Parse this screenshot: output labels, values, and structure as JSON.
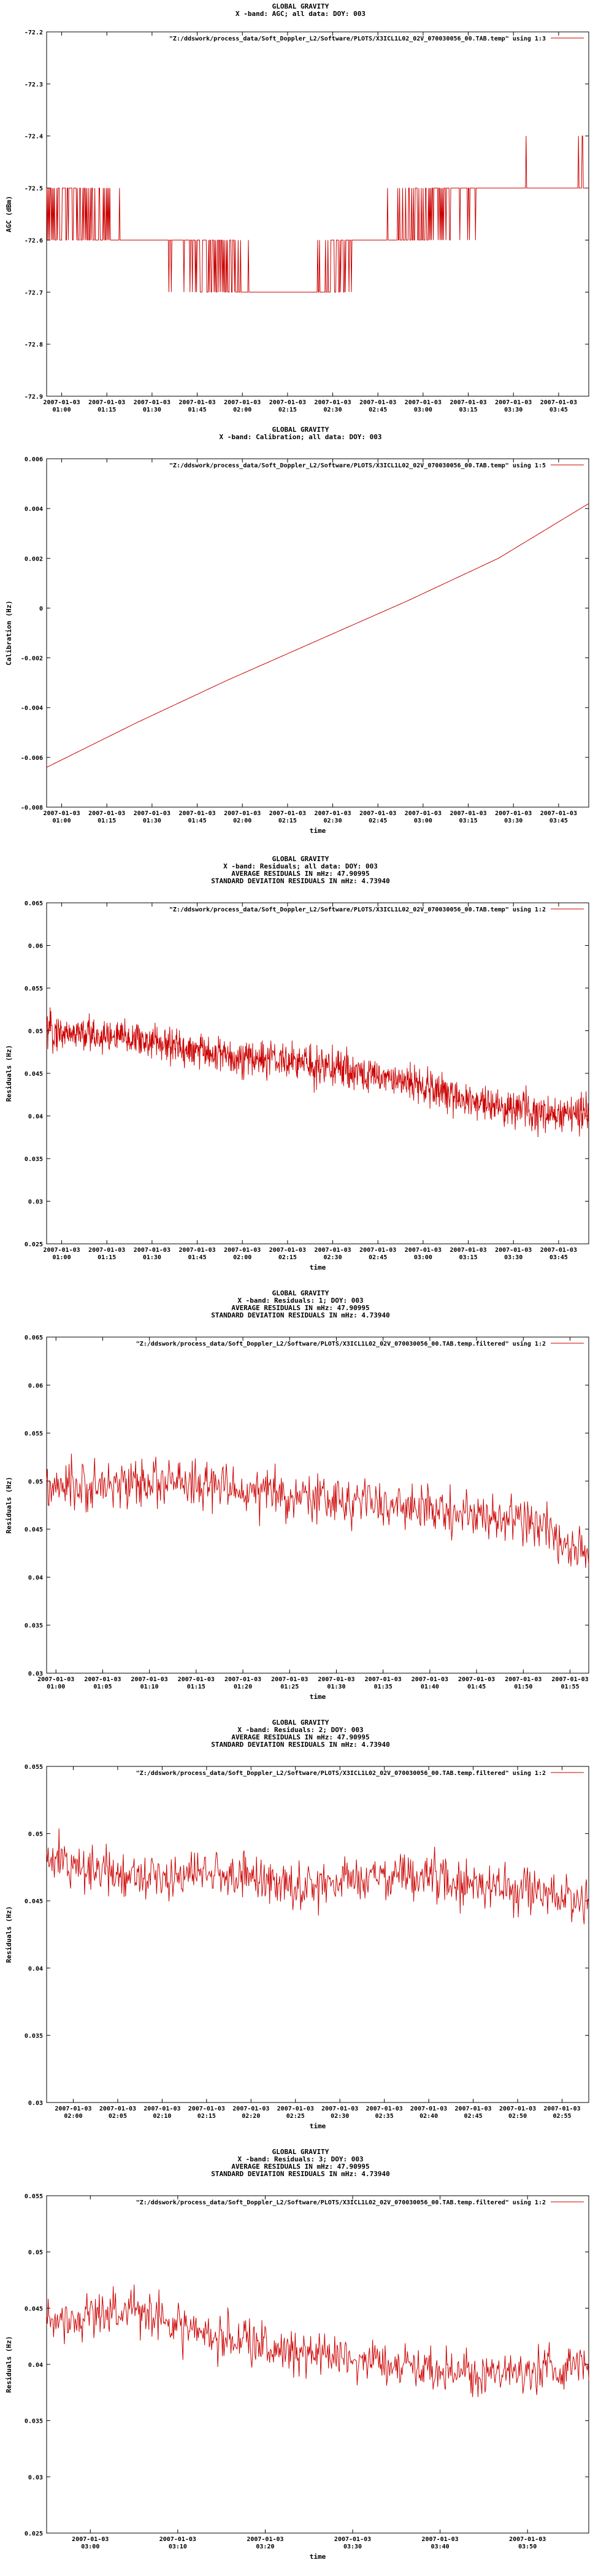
{
  "chart_data": [
    {
      "type": "line",
      "title_lines": [
        "GLOBAL GRAVITY",
        "X -band: AGC; all data: DOY: 003"
      ],
      "legend": "\"Z:/ddswork/process_data/Soft_Doppler_L2/Software/PLOTS/X3ICL1L02_02V_070030056_00.TAB.temp\" using 1:3",
      "xlabel": "",
      "ylabel": "AGC (dBm)",
      "ylim": [
        -72.9,
        -72.2
      ],
      "yticks": [
        "-72.2",
        "-72.3",
        "-72.4",
        "-72.5",
        "-72.6",
        "-72.7",
        "-72.8",
        "-72.9"
      ],
      "yvals": [
        -72.2,
        -72.3,
        -72.4,
        -72.5,
        -72.6,
        -72.7,
        -72.8,
        -72.9
      ],
      "xticks": [
        [
          "2007-01-03",
          "01:00"
        ],
        [
          "2007-01-03",
          "01:15"
        ],
        [
          "2007-01-03",
          "01:30"
        ],
        [
          "2007-01-03",
          "01:45"
        ],
        [
          "2007-01-03",
          "02:00"
        ],
        [
          "2007-01-03",
          "02:15"
        ],
        [
          "2007-01-03",
          "02:30"
        ],
        [
          "2007-01-03",
          "02:45"
        ],
        [
          "2007-01-03",
          "03:00"
        ],
        [
          "2007-01-03",
          "03:15"
        ],
        [
          "2007-01-03",
          "03:30"
        ],
        [
          "2007-01-03",
          "03:45"
        ]
      ],
      "xrange": [
        "2007-01-03 00:55",
        "2007-01-03 03:55"
      ],
      "series": [
        {
          "color": "#cc0000",
          "sample_points": [
            [
              "00:55",
              -72.55
            ],
            [
              "01:10",
              -72.55
            ],
            [
              "01:25",
              -72.6
            ],
            [
              "01:40",
              -72.62
            ],
            [
              "01:55",
              -72.65
            ],
            [
              "02:10",
              -72.7
            ],
            [
              "02:25",
              -72.68
            ],
            [
              "02:40",
              -72.6
            ],
            [
              "02:55",
              -72.56
            ],
            [
              "03:10",
              -72.54
            ],
            [
              "03:25",
              -72.5
            ],
            [
              "03:40",
              -72.5
            ],
            [
              "03:55",
              -72.48
            ]
          ]
        }
      ]
    },
    {
      "type": "line",
      "title_lines": [
        "GLOBAL GRAVITY",
        "X -band: Calibration; all data: DOY: 003"
      ],
      "legend": "\"Z:/ddswork/process_data/Soft_Doppler_L2/Software/PLOTS/X3ICL1L02_02V_070030056_00.TAB.temp\" using 1:5",
      "xlabel": "time",
      "ylabel": "Calibration (Hz)",
      "ylim": [
        -0.008,
        0.006
      ],
      "yticks": [
        "0.006",
        "0.004",
        "0.002",
        "0",
        "-0.002",
        "-0.004",
        "-0.006",
        "-0.008"
      ],
      "yvals": [
        0.006,
        0.004,
        0.002,
        0,
        -0.002,
        -0.004,
        -0.006,
        -0.008
      ],
      "xticks": [
        [
          "2007-01-03",
          "01:00"
        ],
        [
          "2007-01-03",
          "01:15"
        ],
        [
          "2007-01-03",
          "01:30"
        ],
        [
          "2007-01-03",
          "01:45"
        ],
        [
          "2007-01-03",
          "02:00"
        ],
        [
          "2007-01-03",
          "02:15"
        ],
        [
          "2007-01-03",
          "02:30"
        ],
        [
          "2007-01-03",
          "02:45"
        ],
        [
          "2007-01-03",
          "03:00"
        ],
        [
          "2007-01-03",
          "03:15"
        ],
        [
          "2007-01-03",
          "03:30"
        ],
        [
          "2007-01-03",
          "03:45"
        ]
      ],
      "xrange": [
        "2007-01-03 00:55",
        "2007-01-03 03:55"
      ],
      "series": [
        {
          "color": "#cc0000",
          "sample_points": [
            [
              "00:55",
              -0.0064
            ],
            [
              "01:25",
              -0.0046
            ],
            [
              "01:55",
              -0.0029
            ],
            [
              "02:25",
              -0.0013
            ],
            [
              "02:55",
              0.0003
            ],
            [
              "03:25",
              0.002
            ],
            [
              "03:55",
              0.0042
            ]
          ]
        }
      ]
    },
    {
      "type": "line",
      "title_lines": [
        "GLOBAL GRAVITY",
        "X -band: Residuals; all data: DOY: 003",
        "AVERAGE RESIDUALS IN mHz: 47.90995",
        "STANDARD DEVIATION RESIDUALS IN mHz: 4.73940"
      ],
      "legend": "\"Z:/ddswork/process_data/Soft_Doppler_L2/Software/PLOTS/X3ICL1L02_02V_070030056_00.TAB.temp\" using 1:2",
      "xlabel": "time",
      "ylabel": "Residuals (Hz)",
      "ylim": [
        0.025,
        0.065
      ],
      "yticks": [
        "0.065",
        "0.06",
        "0.055",
        "0.05",
        "0.045",
        "0.04",
        "0.035",
        "0.03",
        "0.025"
      ],
      "yvals": [
        0.065,
        0.06,
        0.055,
        0.05,
        0.045,
        0.04,
        0.035,
        0.03,
        0.025
      ],
      "xticks": [
        [
          "2007-01-03",
          "01:00"
        ],
        [
          "2007-01-03",
          "01:15"
        ],
        [
          "2007-01-03",
          "01:30"
        ],
        [
          "2007-01-03",
          "01:45"
        ],
        [
          "2007-01-03",
          "02:00"
        ],
        [
          "2007-01-03",
          "02:15"
        ],
        [
          "2007-01-03",
          "02:30"
        ],
        [
          "2007-01-03",
          "02:45"
        ],
        [
          "2007-01-03",
          "03:00"
        ],
        [
          "2007-01-03",
          "03:15"
        ],
        [
          "2007-01-03",
          "03:30"
        ],
        [
          "2007-01-03",
          "03:45"
        ]
      ],
      "xrange": [
        "2007-01-03 00:55",
        "2007-01-03 03:55"
      ],
      "series": [
        {
          "color": "#cc0000",
          "sample_points": [
            [
              "00:55",
              0.05
            ],
            [
              "01:25",
              0.049
            ],
            [
              "01:55",
              0.047
            ],
            [
              "02:25",
              0.046
            ],
            [
              "02:55",
              0.044
            ],
            [
              "03:25",
              0.041
            ],
            [
              "03:55",
              0.04
            ]
          ]
        }
      ]
    },
    {
      "type": "line",
      "title_lines": [
        "GLOBAL GRAVITY",
        "X -band: Residuals: 1; DOY: 003",
        "AVERAGE RESIDUALS IN mHz: 47.90995",
        "STANDARD DEVIATION RESIDUALS IN mHz: 4.73940"
      ],
      "legend": "\"Z:/ddswork/process_data/Soft_Doppler_L2/Software/PLOTS/X3ICL1L02_02V_070030056_00.TAB.temp.filtered\" using 1:2",
      "xlabel": "time",
      "ylabel": "Residuals (Hz)",
      "ylim": [
        0.03,
        0.065
      ],
      "yticks": [
        "0.065",
        "0.06",
        "0.055",
        "0.05",
        "0.045",
        "0.04",
        "0.035",
        "0.03"
      ],
      "yvals": [
        0.065,
        0.06,
        0.055,
        0.05,
        0.045,
        0.04,
        0.035,
        0.03
      ],
      "xticks": [
        [
          "2007-01-03",
          "01:00"
        ],
        [
          "2007-01-03",
          "01:05"
        ],
        [
          "2007-01-03",
          "01:10"
        ],
        [
          "2007-01-03",
          "01:15"
        ],
        [
          "2007-01-03",
          "01:20"
        ],
        [
          "2007-01-03",
          "01:25"
        ],
        [
          "2007-01-03",
          "01:30"
        ],
        [
          "2007-01-03",
          "01:35"
        ],
        [
          "2007-01-03",
          "01:40"
        ],
        [
          "2007-01-03",
          "01:45"
        ],
        [
          "2007-01-03",
          "01:50"
        ],
        [
          "2007-01-03",
          "01:55"
        ]
      ],
      "xrange": [
        "2007-01-03 00:59",
        "2007-01-03 01:57"
      ],
      "series": [
        {
          "color": "#cc0000",
          "sample_points": [
            [
              "00:59",
              0.049
            ],
            [
              "01:10",
              0.05
            ],
            [
              "01:20",
              0.049
            ],
            [
              "01:30",
              0.048
            ],
            [
              "01:40",
              0.047
            ],
            [
              "01:50",
              0.046
            ],
            [
              "01:57",
              0.042
            ]
          ]
        }
      ]
    },
    {
      "type": "line",
      "title_lines": [
        "GLOBAL GRAVITY",
        "X -band: Residuals: 2; DOY: 003",
        "AVERAGE RESIDUALS IN mHz: 47.90995",
        "STANDARD DEVIATION RESIDUALS IN mHz: 4.73940"
      ],
      "legend": "\"Z:/ddswork/process_data/Soft_Doppler_L2/Software/PLOTS/X3ICL1L02_02V_070030056_00.TAB.temp.filtered\" using 1:2",
      "xlabel": "time",
      "ylabel": "Residuals (Hz)",
      "ylim": [
        0.03,
        0.055
      ],
      "yticks": [
        "0.055",
        "0.05",
        "0.045",
        "0.04",
        "0.035",
        "0.03"
      ],
      "yvals": [
        0.055,
        0.05,
        0.045,
        0.04,
        0.035,
        0.03
      ],
      "xticks": [
        [
          "2007-01-03",
          "02:00"
        ],
        [
          "2007-01-03",
          "02:05"
        ],
        [
          "2007-01-03",
          "02:10"
        ],
        [
          "2007-01-03",
          "02:15"
        ],
        [
          "2007-01-03",
          "02:20"
        ],
        [
          "2007-01-03",
          "02:25"
        ],
        [
          "2007-01-03",
          "02:30"
        ],
        [
          "2007-01-03",
          "02:35"
        ],
        [
          "2007-01-03",
          "02:40"
        ],
        [
          "2007-01-03",
          "02:45"
        ],
        [
          "2007-01-03",
          "02:50"
        ],
        [
          "2007-01-03",
          "02:55"
        ]
      ],
      "xrange": [
        "2007-01-03 01:57",
        "2007-01-03 02:58"
      ],
      "series": [
        {
          "color": "#cc0000",
          "sample_points": [
            [
              "01:57",
              0.048
            ],
            [
              "02:07",
              0.047
            ],
            [
              "02:17",
              0.047
            ],
            [
              "02:27",
              0.046
            ],
            [
              "02:37",
              0.047
            ],
            [
              "02:47",
              0.046
            ],
            [
              "02:58",
              0.045
            ]
          ]
        }
      ]
    },
    {
      "type": "line",
      "title_lines": [
        "GLOBAL GRAVITY",
        "X -band: Residuals: 3; DOY: 003",
        "AVERAGE RESIDUALS IN mHz: 47.90995",
        "STANDARD DEVIATION RESIDUALS IN mHz: 4.73940"
      ],
      "legend": "\"Z:/ddswork/process_data/Soft_Doppler_L2/Software/PLOTS/X3ICL1L02_02V_070030056_00.TAB.temp.filtered\" using 1:2",
      "xlabel": "time",
      "ylabel": "Residuals (Hz)",
      "ylim": [
        0.025,
        0.055
      ],
      "yticks": [
        "0.055",
        "0.05",
        "0.045",
        "0.04",
        "0.035",
        "0.03",
        "0.025"
      ],
      "yvals": [
        0.055,
        0.05,
        0.045,
        0.04,
        0.035,
        0.03,
        0.025
      ],
      "xticks": [
        [
          "2007-01-03",
          "03:00"
        ],
        [
          "2007-01-03",
          "03:10"
        ],
        [
          "2007-01-03",
          "03:20"
        ],
        [
          "2007-01-03",
          "03:30"
        ],
        [
          "2007-01-03",
          "03:40"
        ],
        [
          "2007-01-03",
          "03:50"
        ]
      ],
      "xrange": [
        "2007-01-03 02:55",
        "2007-01-03 03:57"
      ],
      "series": [
        {
          "color": "#cc0000",
          "sample_points": [
            [
              "02:55",
              0.044
            ],
            [
              "03:05",
              0.045
            ],
            [
              "03:15",
              0.042
            ],
            [
              "03:25",
              0.041
            ],
            [
              "03:35",
              0.04
            ],
            [
              "03:45",
              0.039
            ],
            [
              "03:57",
              0.04
            ]
          ]
        }
      ]
    }
  ]
}
